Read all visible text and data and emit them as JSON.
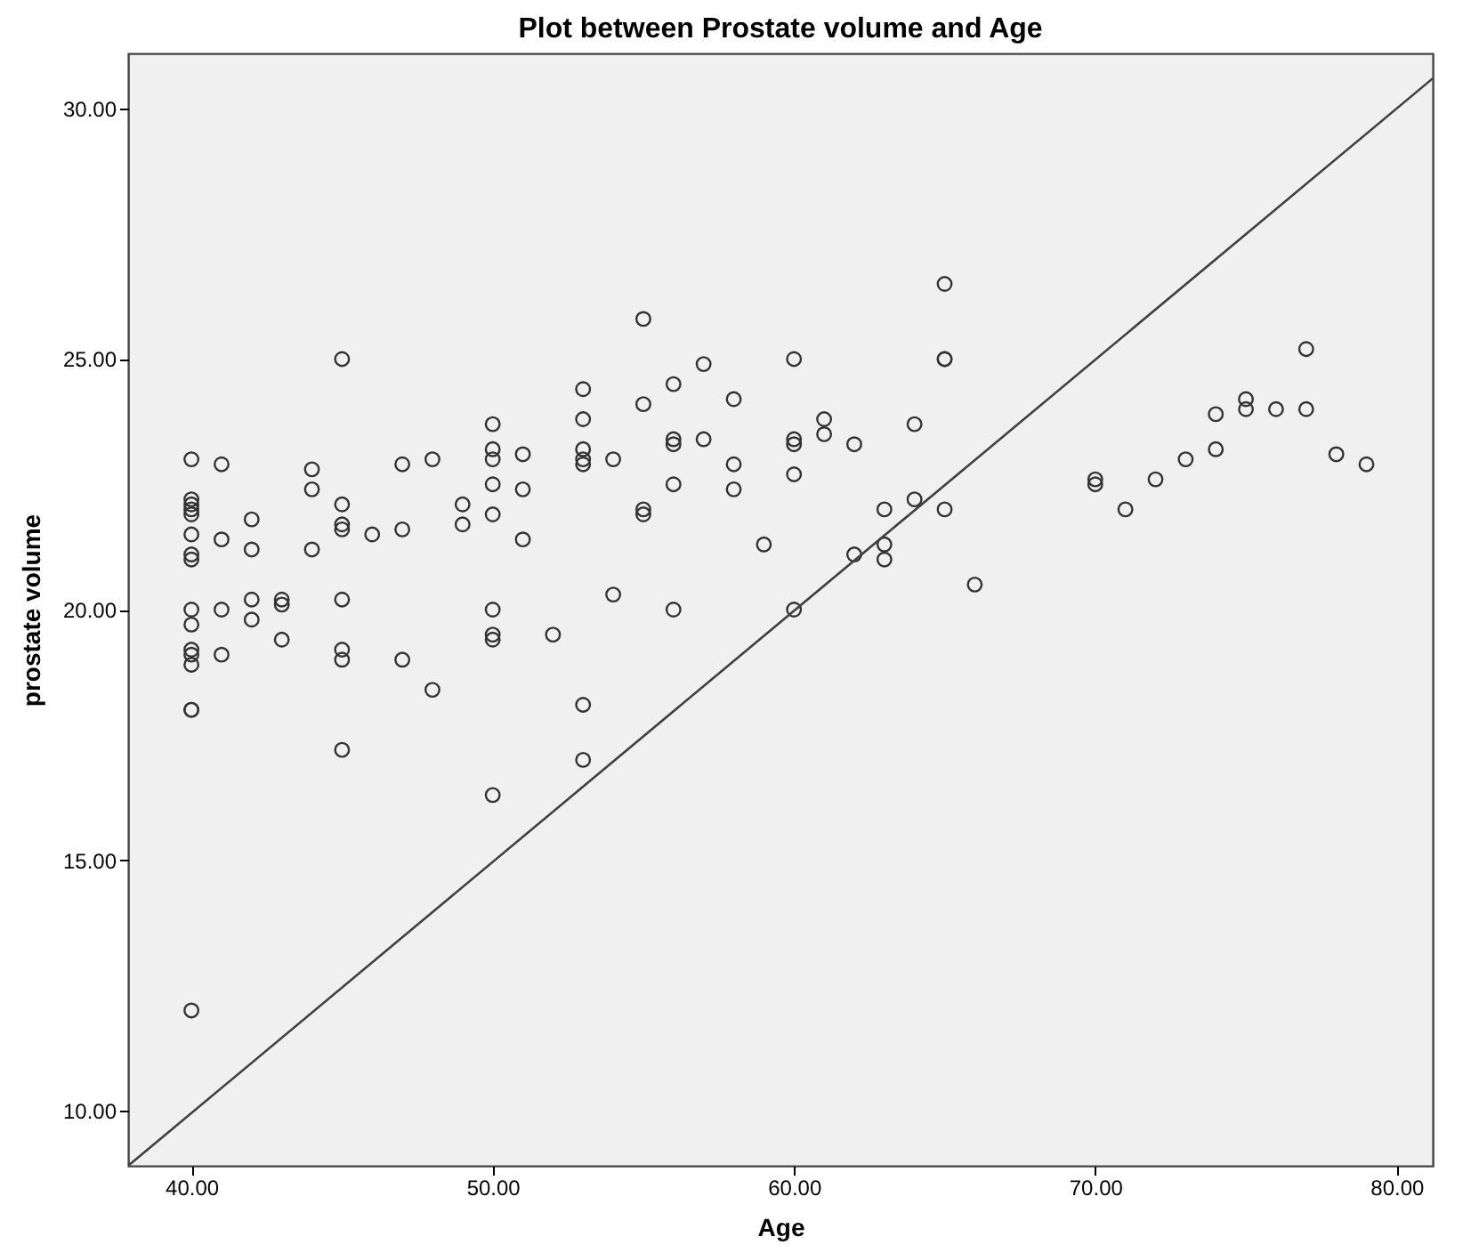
{
  "chart_data": {
    "type": "scatter",
    "title": "Plot between Prostate volume and Age",
    "xlabel": "Age",
    "ylabel": "prostate volume",
    "xlim": [
      37.9,
      81.2
    ],
    "ylim": [
      8.9,
      31.1
    ],
    "xticks": [
      {
        "value": 40,
        "label": "40.00"
      },
      {
        "value": 50,
        "label": "50.00"
      },
      {
        "value": 60,
        "label": "60.00"
      },
      {
        "value": 70,
        "label": "70.00"
      },
      {
        "value": 80,
        "label": "80.00"
      }
    ],
    "yticks": [
      {
        "value": 10,
        "label": "10.00"
      },
      {
        "value": 15,
        "label": "15.00"
      },
      {
        "value": 20,
        "label": "20.00"
      },
      {
        "value": 25,
        "label": "25.00"
      },
      {
        "value": 30,
        "label": "30.00"
      }
    ],
    "grid": false,
    "series": [
      {
        "marker": "circle",
        "color": "#333333",
        "x": [
          40,
          40,
          40,
          40,
          40,
          40,
          40,
          40,
          40,
          40,
          40,
          40,
          40,
          40,
          40,
          40,
          41,
          41,
          41,
          41,
          42,
          42,
          42,
          42,
          43,
          43,
          43,
          44,
          44,
          44,
          45,
          45,
          45,
          45,
          45,
          45,
          45,
          45,
          46,
          47,
          47,
          47,
          48,
          48,
          49,
          49,
          50,
          50,
          50,
          50,
          50,
          50,
          50,
          50,
          50,
          51,
          51,
          51,
          52,
          53,
          53,
          53,
          53,
          53,
          53,
          53,
          54,
          54,
          55,
          55,
          55,
          55,
          56,
          56,
          56,
          56,
          56,
          57,
          57,
          58,
          58,
          58,
          59,
          60,
          60,
          60,
          60,
          60,
          61,
          61,
          62,
          62,
          63,
          63,
          63,
          64,
          64,
          65,
          65,
          65,
          65,
          66,
          70,
          70,
          71,
          72,
          73,
          74,
          74,
          75,
          75,
          76,
          77,
          77,
          78,
          79
        ],
        "values": [
          23.0,
          22.2,
          22.1,
          22.0,
          21.9,
          21.5,
          21.1,
          21.0,
          20.0,
          19.7,
          19.2,
          19.1,
          18.9,
          18.0,
          18.0,
          12.0,
          22.9,
          21.4,
          20.0,
          19.1,
          21.8,
          21.2,
          20.2,
          19.8,
          20.2,
          20.1,
          19.4,
          22.8,
          22.4,
          21.2,
          25.0,
          22.1,
          21.7,
          21.6,
          20.2,
          19.2,
          19.0,
          17.2,
          21.5,
          22.9,
          21.6,
          19.0,
          23.0,
          18.4,
          22.1,
          21.7,
          23.7,
          23.2,
          23.0,
          22.5,
          21.9,
          20.0,
          19.5,
          19.4,
          16.3,
          23.1,
          22.4,
          21.4,
          19.5,
          24.4,
          23.8,
          23.2,
          23.0,
          22.9,
          18.1,
          17.0,
          23.0,
          20.3,
          25.8,
          24.1,
          22.0,
          21.9,
          24.5,
          23.4,
          23.3,
          22.5,
          20.0,
          24.9,
          23.4,
          24.2,
          22.9,
          22.4,
          21.3,
          25.0,
          23.4,
          23.3,
          22.7,
          20.0,
          23.8,
          23.5,
          23.3,
          21.1,
          22.0,
          21.3,
          21.0,
          23.7,
          22.2,
          26.5,
          25.0,
          25.0,
          22.0,
          20.5,
          22.6,
          22.5,
          22.0,
          22.6,
          23.0,
          23.9,
          23.2,
          24.2,
          24.0,
          24.0,
          25.2,
          24.0,
          23.1,
          22.9
        ]
      },
      {
        "type": "line",
        "color": "#404040",
        "x": [
          37.9,
          81.2
        ],
        "values": [
          8.9,
          30.6
        ]
      }
    ]
  }
}
